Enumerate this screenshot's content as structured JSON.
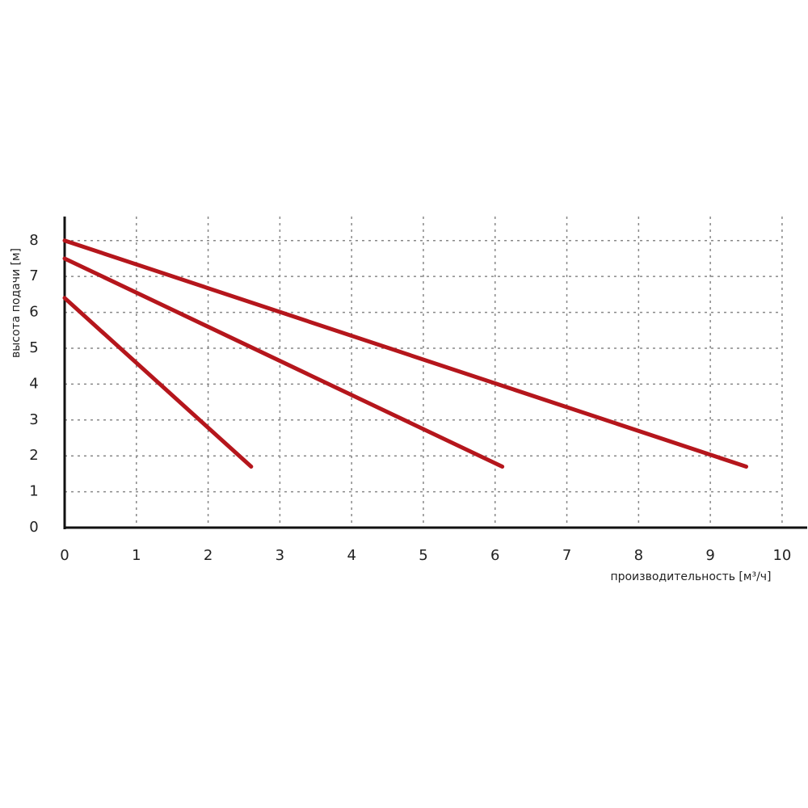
{
  "chart_data": {
    "type": "line",
    "xlabel": "производительность [м³/ч]",
    "ylabel": "высота подачи [м]",
    "xlim": [
      0,
      10.35
    ],
    "ylim": [
      0,
      8.67
    ],
    "xticks": [
      0,
      1,
      2,
      3,
      4,
      5,
      6,
      7,
      8,
      9,
      10
    ],
    "yticks": [
      0,
      1,
      2,
      3,
      4,
      5,
      6,
      7,
      8
    ],
    "grid": true,
    "series": [
      {
        "color": "#b5161c",
        "x": [
          0,
          2.6
        ],
        "values": [
          6.4,
          1.7
        ]
      },
      {
        "color": "#b5161c",
        "x": [
          0,
          6.1
        ],
        "values": [
          7.5,
          1.7
        ]
      },
      {
        "color": "#b5161c",
        "x": [
          0,
          9.5
        ],
        "values": [
          8.0,
          1.7
        ]
      }
    ]
  }
}
